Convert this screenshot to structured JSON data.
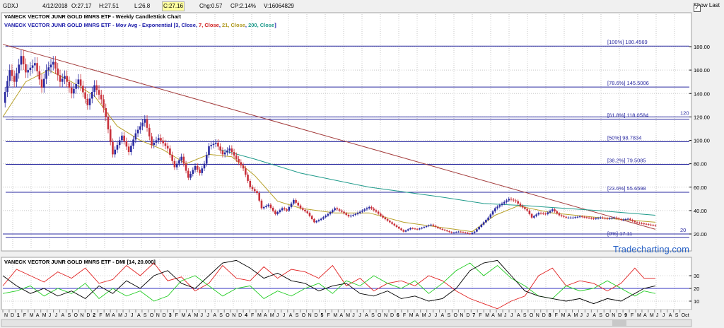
{
  "header": {
    "symbol": "GDXJ",
    "date": "4/12/2018",
    "open": "O:27.17",
    "high": "H:27.51",
    "low": "L:26.8",
    "close": "C:27.16",
    "change": "Chg:0.57",
    "change_pct": "CP:2.14%",
    "volume": "V:16064829",
    "show_last": "Show Last"
  },
  "chart_data": [
    {
      "type": "candlestick",
      "title": "VANECK VECTOR JUNR GOLD MNRS ETF - Weekly CandleStick Chart",
      "subtitle_parts": [
        "VANECK VECTOR JUNR GOLD MNRS ETF - Mov Avg - Exponential [",
        "3, Close",
        ", ",
        "7, Close",
        ", ",
        "21, Close",
        ", ",
        "200, Close",
        "]"
      ],
      "ylim": [
        10,
        190
      ],
      "y_ticks": [
        "20.00",
        "40.00",
        "60.00",
        "80.00",
        "100.00",
        "120.00",
        "140.00",
        "160.00",
        "180.00"
      ],
      "price_path": [
        [
          0,
          132
        ],
        [
          3,
          160
        ],
        [
          5,
          150
        ],
        [
          8,
          172
        ],
        [
          10,
          158
        ],
        [
          14,
          166
        ],
        [
          17,
          145
        ],
        [
          19,
          160
        ],
        [
          22,
          167
        ],
        [
          25,
          150
        ],
        [
          27,
          155
        ],
        [
          30,
          140
        ],
        [
          33,
          152
        ],
        [
          37,
          130
        ],
        [
          40,
          147
        ],
        [
          43,
          135
        ],
        [
          45,
          120
        ],
        [
          48,
          88
        ],
        [
          52,
          104
        ],
        [
          55,
          90
        ],
        [
          58,
          106
        ],
        [
          62,
          118
        ],
        [
          65,
          96
        ],
        [
          68,
          102
        ],
        [
          72,
          93
        ],
        [
          75,
          77
        ],
        [
          78,
          86
        ],
        [
          81,
          68
        ],
        [
          84,
          78
        ],
        [
          86,
          72
        ],
        [
          88,
          80
        ],
        [
          90,
          95
        ],
        [
          93,
          98
        ],
        [
          96,
          88
        ],
        [
          99,
          93
        ],
        [
          102,
          84
        ],
        [
          105,
          76
        ],
        [
          108,
          60
        ],
        [
          111,
          55
        ],
        [
          113,
          42
        ],
        [
          116,
          45
        ],
        [
          119,
          37
        ],
        [
          122,
          42
        ],
        [
          124,
          40
        ],
        [
          127,
          49
        ],
        [
          130,
          42
        ],
        [
          133,
          38
        ],
        [
          136,
          30
        ],
        [
          139,
          33
        ],
        [
          142,
          37
        ],
        [
          145,
          42
        ],
        [
          148,
          39
        ],
        [
          151,
          35
        ],
        [
          154,
          37
        ],
        [
          157,
          40
        ],
        [
          160,
          43
        ],
        [
          163,
          39
        ],
        [
          166,
          34
        ],
        [
          169,
          30
        ],
        [
          172,
          26
        ],
        [
          175,
          22
        ],
        [
          178,
          25
        ],
        [
          181,
          24
        ],
        [
          184,
          26
        ],
        [
          187,
          28
        ],
        [
          190,
          25
        ],
        [
          193,
          23
        ],
        [
          196,
          21
        ],
        [
          199,
          22
        ],
        [
          202,
          21
        ],
        [
          204,
          20
        ],
        [
          206,
          22
        ],
        [
          209,
          28
        ],
        [
          212,
          34
        ],
        [
          215,
          42
        ],
        [
          218,
          46
        ],
        [
          221,
          50
        ],
        [
          224,
          48
        ],
        [
          226,
          44
        ],
        [
          229,
          40
        ],
        [
          231,
          34
        ],
        [
          234,
          38
        ],
        [
          237,
          37
        ],
        [
          240,
          41
        ],
        [
          243,
          36
        ],
        [
          246,
          34
        ],
        [
          249,
          34
        ],
        [
          252,
          35
        ],
        [
          255,
          34
        ],
        [
          258,
          33
        ],
        [
          261,
          34
        ],
        [
          264,
          33
        ],
        [
          267,
          34
        ],
        [
          270,
          32
        ],
        [
          273,
          33
        ],
        [
          276,
          30
        ],
        [
          279,
          29
        ],
        [
          282,
          28
        ],
        [
          285,
          27
        ]
      ],
      "ema200_path": [
        [
          95,
          92
        ],
        [
          110,
          84
        ],
        [
          130,
          72
        ],
        [
          160,
          60
        ],
        [
          190,
          52
        ],
        [
          210,
          46
        ],
        [
          230,
          44
        ],
        [
          260,
          40
        ],
        [
          285,
          36
        ]
      ],
      "ema21_path": [
        [
          0,
          120
        ],
        [
          10,
          150
        ],
        [
          20,
          160
        ],
        [
          30,
          150
        ],
        [
          40,
          138
        ],
        [
          50,
          112
        ],
        [
          60,
          100
        ],
        [
          70,
          92
        ],
        [
          80,
          80
        ],
        [
          90,
          88
        ],
        [
          100,
          86
        ],
        [
          110,
          70
        ],
        [
          120,
          48
        ],
        [
          130,
          42
        ],
        [
          145,
          38
        ],
        [
          160,
          38
        ],
        [
          175,
          30
        ],
        [
          190,
          26
        ],
        [
          205,
          22
        ],
        [
          215,
          36
        ],
        [
          225,
          44
        ],
        [
          240,
          38
        ],
        [
          260,
          34
        ],
        [
          285,
          30
        ]
      ],
      "fib_levels": [
        {
          "label": "[100%]",
          "value": 180.4569,
          "text": "180.4569"
        },
        {
          "label": "[78.6%]",
          "value": 145.5006,
          "text": "145.5006"
        },
        {
          "label": "[61.8%]",
          "value": 118.0584,
          "text": "118.0584"
        },
        {
          "label": "[50%]",
          "value": 98.7834,
          "text": "98.7834"
        },
        {
          "label": "[38.2%]",
          "value": 79.5085,
          "text": "79.5085"
        },
        {
          "label": "[23.6%]",
          "value": 55.6598,
          "text": "55.6598"
        },
        {
          "label": "[0%]",
          "value": 17.11,
          "text": "17.11"
        }
      ],
      "trendline": [
        [
          0,
          182
        ],
        [
          285,
          24
        ]
      ],
      "hlines": [
        {
          "value": 120,
          "label": "120"
        },
        {
          "value": 20,
          "label": "20"
        }
      ],
      "watermark": "Tradecharting.com",
      "colors": {
        "fib": "#2a2aa0",
        "trendline": "#a33c3c",
        "ema200": "#1e9a8a",
        "ema21": "#b8a12a",
        "candle_up": "#2a2aa0",
        "candle_down": "#c8303a"
      }
    },
    {
      "type": "line",
      "title": "VANECK VECTOR JUNR GOLD MNRS ETF - DMI [14, 20.000]",
      "ylim": [
        0,
        43
      ],
      "y_ticks": [
        "10",
        "20",
        "30"
      ],
      "reference_line": 20,
      "series": [
        {
          "color": "#e02020",
          "values": [
            [
              0,
              22
            ],
            [
              6,
              35
            ],
            [
              12,
              30
            ],
            [
              18,
              25
            ],
            [
              24,
              33
            ],
            [
              30,
              28
            ],
            [
              36,
              36
            ],
            [
              42,
              24
            ],
            [
              48,
              27
            ],
            [
              54,
              38
            ],
            [
              60,
              30
            ],
            [
              66,
              40
            ],
            [
              72,
              26
            ],
            [
              78,
              29
            ],
            [
              84,
              18
            ],
            [
              90,
              24
            ],
            [
              96,
              38
            ],
            [
              102,
              28
            ],
            [
              108,
              26
            ],
            [
              114,
              37
            ],
            [
              120,
              28
            ],
            [
              126,
              35
            ],
            [
              132,
              33
            ],
            [
              138,
              28
            ],
            [
              144,
              38
            ],
            [
              150,
              22
            ],
            [
              156,
              28
            ],
            [
              162,
              18
            ],
            [
              168,
              24
            ],
            [
              174,
              26
            ],
            [
              180,
              22
            ],
            [
              186,
              30
            ],
            [
              192,
              26
            ],
            [
              198,
              18
            ],
            [
              204,
              12
            ],
            [
              210,
              8
            ],
            [
              216,
              4
            ],
            [
              222,
              10
            ],
            [
              228,
              14
            ],
            [
              234,
              30
            ],
            [
              240,
              36
            ],
            [
              246,
              22
            ],
            [
              252,
              26
            ],
            [
              258,
              24
            ],
            [
              264,
              18
            ],
            [
              270,
              24
            ],
            [
              276,
              36
            ],
            [
              280,
              28
            ],
            [
              285,
              28
            ]
          ]
        },
        {
          "color": "#22cc22",
          "values": [
            [
              0,
              16
            ],
            [
              6,
              18
            ],
            [
              12,
              22
            ],
            [
              18,
              14
            ],
            [
              24,
              20
            ],
            [
              30,
              16
            ],
            [
              36,
              24
            ],
            [
              42,
              12
            ],
            [
              48,
              20
            ],
            [
              54,
              14
            ],
            [
              60,
              18
            ],
            [
              66,
              10
            ],
            [
              72,
              14
            ],
            [
              78,
              26
            ],
            [
              84,
              30
            ],
            [
              90,
              22
            ],
            [
              96,
              14
            ],
            [
              102,
              20
            ],
            [
              108,
              22
            ],
            [
              114,
              12
            ],
            [
              120,
              18
            ],
            [
              126,
              14
            ],
            [
              132,
              20
            ],
            [
              138,
              24
            ],
            [
              144,
              16
            ],
            [
              150,
              26
            ],
            [
              156,
              22
            ],
            [
              162,
              30
            ],
            [
              168,
              24
            ],
            [
              174,
              20
            ],
            [
              180,
              26
            ],
            [
              186,
              16
            ],
            [
              192,
              24
            ],
            [
              198,
              34
            ],
            [
              204,
              40
            ],
            [
              210,
              30
            ],
            [
              216,
              38
            ],
            [
              222,
              28
            ],
            [
              228,
              22
            ],
            [
              234,
              14
            ],
            [
              240,
              12
            ],
            [
              246,
              22
            ],
            [
              252,
              18
            ],
            [
              258,
              20
            ],
            [
              264,
              26
            ],
            [
              270,
              20
            ],
            [
              276,
              14
            ],
            [
              280,
              18
            ],
            [
              285,
              16
            ]
          ]
        },
        {
          "color": "#000000",
          "values": [
            [
              0,
              30
            ],
            [
              6,
              22
            ],
            [
              12,
              16
            ],
            [
              18,
              20
            ],
            [
              24,
              14
            ],
            [
              30,
              18
            ],
            [
              36,
              12
            ],
            [
              42,
              22
            ],
            [
              48,
              16
            ],
            [
              54,
              26
            ],
            [
              60,
              20
            ],
            [
              66,
              30
            ],
            [
              72,
              34
            ],
            [
              78,
              24
            ],
            [
              84,
              20
            ],
            [
              90,
              30
            ],
            [
              96,
              40
            ],
            [
              102,
              42
            ],
            [
              108,
              36
            ],
            [
              114,
              28
            ],
            [
              120,
              32
            ],
            [
              126,
              26
            ],
            [
              132,
              24
            ],
            [
              138,
              18
            ],
            [
              144,
              22
            ],
            [
              150,
              24
            ],
            [
              156,
              16
            ],
            [
              162,
              14
            ],
            [
              168,
              18
            ],
            [
              174,
              12
            ],
            [
              180,
              14
            ],
            [
              186,
              10
            ],
            [
              192,
              12
            ],
            [
              198,
              20
            ],
            [
              204,
              34
            ],
            [
              210,
              40
            ],
            [
              216,
              42
            ],
            [
              222,
              30
            ],
            [
              228,
              18
            ],
            [
              234,
              14
            ],
            [
              240,
              12
            ],
            [
              246,
              10
            ],
            [
              252,
              12
            ],
            [
              258,
              8
            ],
            [
              264,
              12
            ],
            [
              270,
              10
            ],
            [
              276,
              16
            ],
            [
              280,
              20
            ],
            [
              285,
              22
            ]
          ]
        }
      ]
    }
  ],
  "x_axis_labels": [
    "N",
    "D",
    "1",
    "F",
    "M",
    "A",
    "M",
    "J",
    "J",
    "A",
    "S",
    "O",
    "N",
    "D",
    "2",
    "F",
    "M",
    "A",
    "M",
    "J",
    "J",
    "A",
    "S",
    "O",
    "N",
    "D",
    "3",
    "F",
    "M",
    "A",
    "M",
    "J",
    "J",
    "A",
    "S",
    "O",
    "N",
    "D",
    "4",
    "F",
    "M",
    "A",
    "M",
    "J",
    "J",
    "A",
    "S",
    "O",
    "N",
    "D",
    "5",
    "F",
    "M",
    "A",
    "M",
    "J",
    "J",
    "A",
    "S",
    "O",
    "N",
    "D",
    "6",
    "F",
    "M",
    "A",
    "M",
    "J",
    "J",
    "A",
    "S",
    "O",
    "N",
    "D",
    "7",
    "F",
    "M",
    "A",
    "M",
    "J",
    "J",
    "A",
    "S",
    "O",
    "N",
    "D",
    "8",
    "F",
    "M",
    "A",
    "M",
    "J",
    "J",
    "A",
    "S",
    "O",
    "N",
    "D",
    "9",
    "F",
    "M",
    "A",
    "M",
    "J",
    "J",
    "A",
    "S",
    "Oct"
  ]
}
